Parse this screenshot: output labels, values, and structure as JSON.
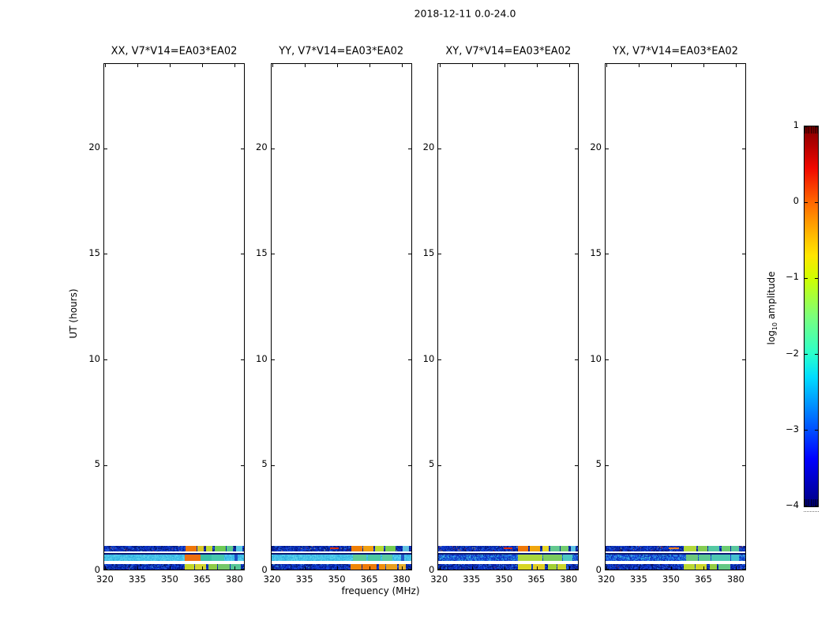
{
  "figure": {
    "title": "2018-12-11 0.0-24.0",
    "xlabel": "frequency (MHz)",
    "ylabel": "UT (hours)"
  },
  "colorbar": {
    "label_prefix": "log",
    "label_sub": "10",
    "label_suffix": " amplitude",
    "tick_labels": [
      "1",
      "0",
      "−1",
      "−2",
      "−3",
      "−4"
    ],
    "tick_values": [
      1,
      0,
      -1,
      -2,
      -3,
      -4
    ],
    "colormap": "jet",
    "range_min": -4,
    "range_max": 1
  },
  "chart_data": {
    "type": "heatmap",
    "title": "2018-12-11 0.0-24.0",
    "xlabel": "frequency (MHz)",
    "ylabel": "UT (hours)",
    "xlim": [
      319.3,
      384.8
    ],
    "ylim": [
      0,
      24
    ],
    "xticks": [
      320,
      335,
      350,
      365,
      380
    ],
    "xtick_labels": [
      "320",
      "335",
      "350",
      "365",
      "380"
    ],
    "yticks": [
      0,
      5,
      10,
      15,
      20
    ],
    "ytick_labels": [
      "0",
      "5",
      "10",
      "15",
      "20"
    ],
    "grid": false,
    "colorbar": {
      "label": "log10 amplitude",
      "ticks": [
        1,
        0,
        -1,
        -2,
        -3,
        -4
      ],
      "range": [
        -4,
        1
      ],
      "colormap": "jet"
    },
    "description": "Four polarization cross-power dynamic spectra; data present only between UT 0.0 and ~1.2 h as three horizontal bands: speckled dark-blue noise (log10 amp ~ -3.5) from 320-356 MHz and bright RFI patches (log10 amp ~ -1 to 0) from 356-384 MHz",
    "panels": [
      {
        "title": "XX, V7*V14=EA03*EA02",
        "bands": [
          {
            "y": [
              0.93,
              1.2
            ],
            "fill": "speckle-dark",
            "specks": "hot",
            "patches": [
              [
                357,
                362,
                "#ee7608"
              ],
              [
                362.5,
                365.5,
                "#d8c426"
              ],
              [
                366.5,
                369.5,
                "#bcd832"
              ],
              [
                370.5,
                375.5,
                "#6ecb55"
              ],
              [
                376,
                379,
                "#58c88e"
              ],
              [
                380.5,
                383.5,
                "#5ac8e2"
              ]
            ],
            "dashes": []
          },
          {
            "y": [
              0.785,
              0.845
            ],
            "fill": "solid",
            "color": "#0a1672"
          },
          {
            "y": [
              0.5,
              0.785
            ],
            "fill": "flat-cyan",
            "patches": [
              [
                356.5,
                364,
                "#ee6f10"
              ],
              [
                364,
                369,
                "#38bfa6"
              ],
              [
                369,
                375,
                "#46c8ae"
              ],
              [
                379.5,
                381,
                "#1b51c8"
              ]
            ],
            "dashes": []
          },
          {
            "y": [
              0.065,
              0.335
            ],
            "fill": "speckle-dark",
            "specks": "mild",
            "patches": [
              [
                356.5,
                361,
                "#c6d626"
              ],
              [
                361.5,
                366.5,
                "#d2d632"
              ],
              [
                367.5,
                371.5,
                "#8ecc46"
              ],
              [
                372,
                377.5,
                "#74c868"
              ],
              [
                378,
                382.5,
                "#55c796"
              ]
            ],
            "dashes": []
          }
        ]
      },
      {
        "title": "YY, V7*V14=EA03*EA02",
        "bands": [
          {
            "y": [
              0.93,
              1.2
            ],
            "fill": "speckle-dark",
            "specks": "hot",
            "patches": [
              [
                356.5,
                361.5,
                "#ef7f06"
              ],
              [
                362,
                366.5,
                "#f09f10"
              ],
              [
                367.5,
                371.5,
                "#b4d832"
              ],
              [
                372,
                377,
                "#74cc52"
              ],
              [
                380,
                383,
                "#62c2e0"
              ]
            ],
            "dashes": [
              [
                346.5,
                350.5,
                "#d83210"
              ]
            ]
          },
          {
            "y": [
              0.785,
              0.845
            ],
            "fill": "solid",
            "color": "#0a1672"
          },
          {
            "y": [
              0.5,
              0.785
            ],
            "fill": "flat-cyan",
            "patches": [
              [
                357,
                363.5,
                "#5ecb96"
              ],
              [
                364,
                370,
                "#4cc8a2"
              ],
              [
                370.5,
                375.5,
                "#5acba0"
              ],
              [
                379.5,
                381,
                "#2158c8"
              ]
            ],
            "dashes": []
          },
          {
            "y": [
              0.065,
              0.335
            ],
            "fill": "speckle-dark",
            "specks": "mild",
            "patches": [
              [
                356,
                361,
                "#f08606"
              ],
              [
                361.5,
                368,
                "#ee7a0a"
              ],
              [
                369,
                372,
                "#f0900e"
              ],
              [
                372.5,
                377.5,
                "#eaa01e"
              ],
              [
                378.5,
                381.5,
                "#e8ae2e"
              ]
            ],
            "dashes": []
          }
        ]
      },
      {
        "title": "XY, V7*V14=EA03*EA02",
        "bands": [
          {
            "y": [
              0.93,
              1.2
            ],
            "fill": "speckle-dark",
            "specks": "hot",
            "patches": [
              [
                356,
                361,
                "#ee7808"
              ],
              [
                361.5,
                366.5,
                "#f0a60e"
              ],
              [
                367.5,
                370.5,
                "#e8d626"
              ],
              [
                371,
                375.5,
                "#62c88e"
              ],
              [
                376,
                379.5,
                "#72cc6e"
              ],
              [
                380.5,
                383,
                "#5ac0e0"
              ]
            ],
            "dashes": [
              [
                349.5,
                353.5,
                "#e02c10"
              ]
            ]
          },
          {
            "y": [
              0.785,
              0.845
            ],
            "fill": "solid",
            "color": "#0a1672"
          },
          {
            "y": [
              0.5,
              0.785
            ],
            "fill": "speckle-blue",
            "patches": [
              [
                356,
                367.5,
                "#aad83e"
              ],
              [
                368,
                376.5,
                "#7ccc5e"
              ],
              [
                377,
                381.5,
                "#4cc8c2"
              ]
            ],
            "dashes": []
          },
          {
            "y": [
              0.065,
              0.335
            ],
            "fill": "speckle-dark",
            "specks": "mild",
            "patches": [
              [
                356,
                362.5,
                "#d8d622"
              ],
              [
                363,
                368.5,
                "#e0ce22"
              ],
              [
                370,
                374,
                "#a2d032"
              ],
              [
                374.5,
                378.5,
                "#ccd62a"
              ]
            ],
            "dashes": []
          }
        ]
      },
      {
        "title": "YX, V7*V14=EA03*EA02",
        "bands": [
          {
            "y": [
              0.93,
              1.2
            ],
            "fill": "speckle-dark",
            "specks": "hot",
            "patches": [
              [
                355.5,
                361.5,
                "#b2d83a"
              ],
              [
                362,
                366.5,
                "#84cc52"
              ],
              [
                367,
                372,
                "#54c8a2"
              ],
              [
                373,
                377,
                "#6ccc72"
              ],
              [
                377.5,
                381,
                "#5ac89c"
              ]
            ],
            "dashes": [
              [
                348.5,
                353.5,
                "#f08226"
              ]
            ]
          },
          {
            "y": [
              0.785,
              0.845
            ],
            "fill": "solid",
            "color": "#0a1672"
          },
          {
            "y": [
              0.5,
              0.785
            ],
            "fill": "speckle-blue",
            "patches": [
              [
                356.5,
                362,
                "#6cc87c"
              ],
              [
                362.5,
                368,
                "#5cc892"
              ],
              [
                368.5,
                377,
                "#4cc8b2"
              ],
              [
                377.5,
                381,
                "#44c2d2"
              ]
            ],
            "dashes": []
          },
          {
            "y": [
              0.065,
              0.335
            ],
            "fill": "speckle-dark",
            "specks": "mild",
            "patches": [
              [
                355.5,
                360.5,
                "#bad832"
              ],
              [
                361,
                366,
                "#ccd62a"
              ],
              [
                367.5,
                371,
                "#94cc42"
              ],
              [
                371.5,
                377,
                "#64c884"
              ]
            ],
            "dashes": []
          }
        ]
      }
    ]
  }
}
